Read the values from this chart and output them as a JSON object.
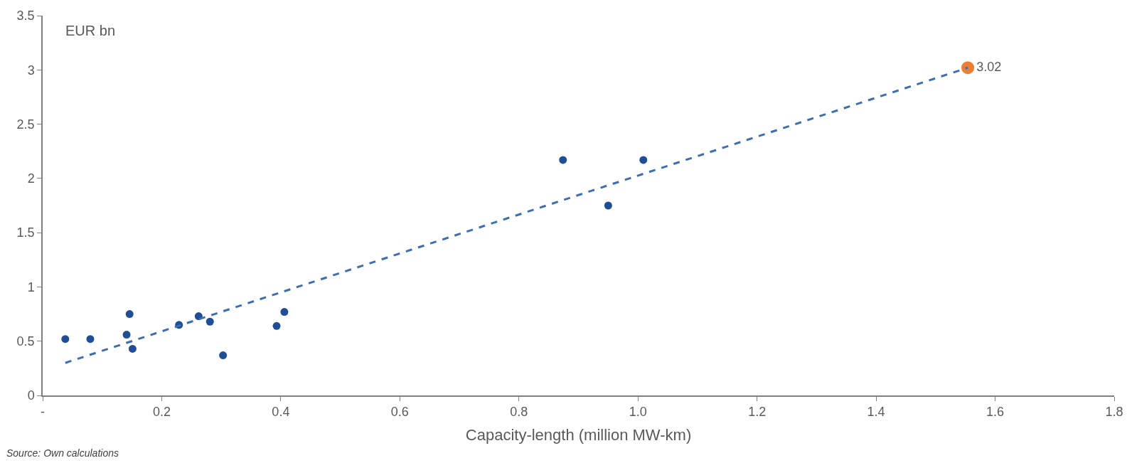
{
  "chart_data": {
    "type": "scatter",
    "xlabel": "Capacity-length (million MW-km)",
    "annotations": [
      "EUR bn",
      "Source: Own calculations"
    ],
    "series": [
      {
        "color": "#1f4e96",
        "marker": "circle",
        "x": [
          0.038,
          0.08,
          0.141,
          0.146,
          0.151,
          0.229,
          0.262,
          0.281,
          0.303,
          0.393,
          0.406,
          0.874,
          0.95,
          1.009
        ],
        "values": [
          0.52,
          0.52,
          0.56,
          0.75,
          0.43,
          0.65,
          0.73,
          0.68,
          0.37,
          0.64,
          0.77,
          2.17,
          1.75,
          2.17
        ]
      },
      {
        "color": "#ed7d31",
        "marker": "circle",
        "x": [
          1.554
        ],
        "values": [
          3.02
        ],
        "value_labels": [
          "3.02"
        ]
      },
      {
        "type": "line",
        "color": "#3d6fb0",
        "line_style": "dashed",
        "marker": "none",
        "x": [
          0.038,
          1.554
        ],
        "values": [
          0.3,
          3.02
        ]
      }
    ],
    "xlim": [
      0,
      1.8
    ],
    "xticks": [
      {
        "value": 0,
        "label": "-"
      },
      0.2,
      0.4,
      0.6,
      0.8,
      {
        "value": 1.0,
        "label": "1.0"
      },
      1.2,
      1.4,
      1.6,
      1.8
    ],
    "ylim": [
      0,
      3.5
    ],
    "yticks": [
      0,
      0.5,
      1,
      1.5,
      2,
      2.5,
      3,
      3.5
    ]
  }
}
